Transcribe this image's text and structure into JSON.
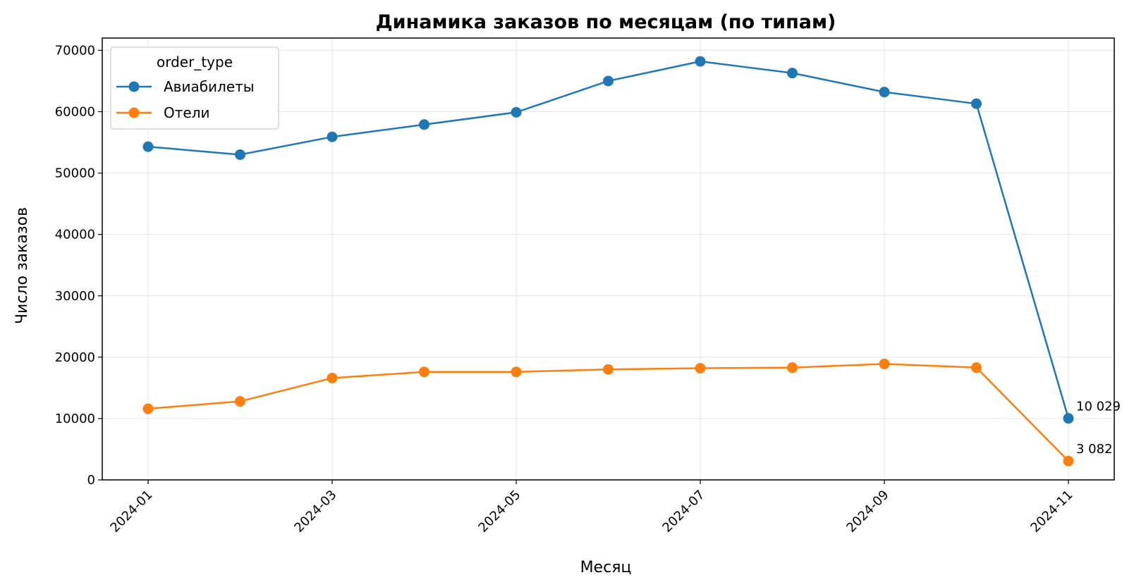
{
  "chart_data": {
    "type": "line",
    "title": "Динамика заказов по месяцам (по типам)",
    "xlabel": "Месяц",
    "ylabel": "Число заказов",
    "x": [
      "2024-01",
      "2024-02",
      "2024-03",
      "2024-04",
      "2024-05",
      "2024-06",
      "2024-07",
      "2024-08",
      "2024-09",
      "2024-10",
      "2024-11"
    ],
    "x_tick_labels": [
      "2024-01",
      "2024-03",
      "2024-05",
      "2024-07",
      "2024-09",
      "2024-11"
    ],
    "ylim": [
      0,
      72000
    ],
    "y_ticks": [
      0,
      10000,
      20000,
      30000,
      40000,
      50000,
      60000,
      70000
    ],
    "y_tick_labels": [
      "0",
      "10000",
      "20000",
      "30000",
      "40000",
      "50000",
      "60000",
      "70000"
    ],
    "grid": true,
    "legend": {
      "title": "order_type",
      "position": "top-left"
    },
    "series": [
      {
        "name": "Авиабилеты",
        "color": "#1f77b4",
        "values": [
          54300,
          53000,
          55900,
          57900,
          59900,
          65000,
          68200,
          66300,
          63200,
          61300,
          10029
        ],
        "last_label": "10 029"
      },
      {
        "name": "Отели",
        "color": "#ff7f0e",
        "values": [
          11600,
          12800,
          16600,
          17600,
          17600,
          18000,
          18200,
          18300,
          18900,
          18300,
          3082
        ],
        "last_label": "3 082"
      }
    ]
  }
}
